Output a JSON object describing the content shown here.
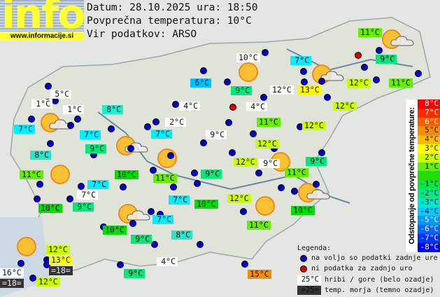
{
  "header": {
    "logo_text": "info",
    "site": "www.informacije.si",
    "date_line": "Datum: 28.10.2025 ura: 18:50",
    "avg_line": "Povprečna temperatura: 10°C",
    "source_line": "Vir podatkov: ARSO"
  },
  "colors": {
    "t16": "#ffffff",
    "t15": "#f28c00",
    "t13": "#ffff00",
    "t12": "#ccff00",
    "t11": "#66ee00",
    "t10": "#00dd00",
    "t9": "#00e87a",
    "t8": "#22e8cc",
    "t7": "#00eeff",
    "t6": "#00c0ff",
    "white": "#ffffff",
    "sea": "#333333",
    "station_ok": "#0000cc",
    "station_missing": "#dd0000",
    "sun": "#f7c133"
  },
  "stations": [
    {
      "t": "11°C",
      "c": "t11"
    },
    {
      "t": "9°C",
      "c": "t9"
    },
    {
      "t": "10°C",
      "c": "white"
    },
    {
      "t": "7°C",
      "c": "t7"
    },
    {
      "t": "6°C",
      "c": "t6"
    },
    {
      "t": "9°C",
      "c": "t9"
    },
    {
      "t": "12°C",
      "c": "white"
    },
    {
      "t": "13°C",
      "c": "t13"
    },
    {
      "t": "12°C",
      "c": "t12"
    },
    {
      "t": "11°C",
      "c": "t11"
    },
    {
      "t": "5°C",
      "c": "white"
    },
    {
      "t": "1°C",
      "c": "white"
    },
    {
      "t": "1°C",
      "c": "white"
    },
    {
      "t": "8°C",
      "c": "t8"
    },
    {
      "t": "4°C",
      "c": "white"
    },
    {
      "t": "4°C",
      "c": "white"
    },
    {
      "t": "12°C",
      "c": "t12"
    },
    {
      "t": "7°C",
      "c": "t7"
    },
    {
      "t": "11°C",
      "c": "t11"
    },
    {
      "t": "2°C",
      "c": "white"
    },
    {
      "t": "7°C",
      "c": "t7"
    },
    {
      "t": "7°C",
      "c": "t7"
    },
    {
      "t": "9°C",
      "c": "white"
    },
    {
      "t": "12°C",
      "c": "t12"
    },
    {
      "t": "9°C",
      "c": "t9"
    },
    {
      "t": "12°C",
      "c": "t12"
    },
    {
      "t": "8°C",
      "c": "t8"
    },
    {
      "t": "12°C",
      "c": "t12"
    },
    {
      "t": "9°C",
      "c": "white"
    },
    {
      "t": "9°C",
      "c": "t9"
    },
    {
      "t": "11°C",
      "c": "t11"
    },
    {
      "t": "10°C",
      "c": "t10"
    },
    {
      "t": "11°C",
      "c": "t11"
    },
    {
      "t": "9°C",
      "c": "t9"
    },
    {
      "t": "11°C",
      "c": "t11"
    },
    {
      "t": "7°C",
      "c": "t7"
    },
    {
      "t": "7°C",
      "c": "white"
    },
    {
      "t": "12°C",
      "c": "t12"
    },
    {
      "t": "10°C",
      "c": "t10"
    },
    {
      "t": "9°C",
      "c": "t9"
    },
    {
      "t": "7°C",
      "c": "t7"
    },
    {
      "t": "10°C",
      "c": "t10"
    },
    {
      "t": "10°C",
      "c": "t10"
    },
    {
      "t": "7°C",
      "c": "t7"
    },
    {
      "t": "11°C",
      "c": "t11"
    },
    {
      "t": "10°C",
      "c": "t10"
    },
    {
      "t": "9°C",
      "c": "t9"
    },
    {
      "t": "8°C",
      "c": "t8"
    },
    {
      "t": "12°C",
      "c": "t12"
    },
    {
      "t": "13°C",
      "c": "t13"
    },
    {
      "t": "=18=",
      "c": "sea"
    },
    {
      "t": "16°C",
      "c": "white"
    },
    {
      "t": "12°C",
      "c": "t12"
    },
    {
      "t": "=18=",
      "c": "sea"
    },
    {
      "t": "9°C",
      "c": "t9"
    },
    {
      "t": "4°C",
      "c": "white"
    },
    {
      "t": "15°C",
      "c": "t15"
    }
  ],
  "scale": {
    "title": "Odstopanje od povprečne temperature:",
    "steps": [
      {
        "t": "8°C",
        "c": "#ff0000",
        "fg": "#fff"
      },
      {
        "t": "7°C",
        "c": "#ff2a00",
        "fg": "#ffd"
      },
      {
        "t": "6°C",
        "c": "#ff5a00",
        "fg": "#ffd"
      },
      {
        "t": "5°C",
        "c": "#ff8c00",
        "fg": "#111"
      },
      {
        "t": "4°C",
        "c": "#ffbb00",
        "fg": "#111"
      },
      {
        "t": "3°C",
        "c": "#ffff00",
        "fg": "#111"
      },
      {
        "t": "2°C",
        "c": "#ccff00",
        "fg": "#111"
      },
      {
        "t": "1°C",
        "c": "#66ee00",
        "fg": "#111"
      },
      {
        "t": "",
        "c": "#22dd00",
        "fg": "#111"
      },
      {
        "t": "-1°C",
        "c": "#00e844",
        "fg": "#111"
      },
      {
        "t": "-2°C",
        "c": "#00e888",
        "fg": "#111"
      },
      {
        "t": "-3°C",
        "c": "#00e8cc",
        "fg": "#111"
      },
      {
        "t": "-4°C",
        "c": "#00ccff",
        "fg": "#111"
      },
      {
        "t": "-5°C",
        "c": "#0099ff",
        "fg": "#fff"
      },
      {
        "t": "-6°C",
        "c": "#0066ff",
        "fg": "#fff"
      },
      {
        "t": "-7°C",
        "c": "#0033ff",
        "fg": "#fff"
      },
      {
        "t": "-8°C",
        "c": "#0000ff",
        "fg": "#fff"
      }
    ]
  },
  "legend": {
    "title": "Legenda:",
    "blue": "na voljo so podatki zadnje ure",
    "red": "ni podatka za zadnjo uro",
    "hill_sample": "25°C",
    "hill": "hribi / gore (belo ozadje)",
    "sea_sample": "=25=",
    "sea": "temp. morja (temno ozadje)"
  }
}
